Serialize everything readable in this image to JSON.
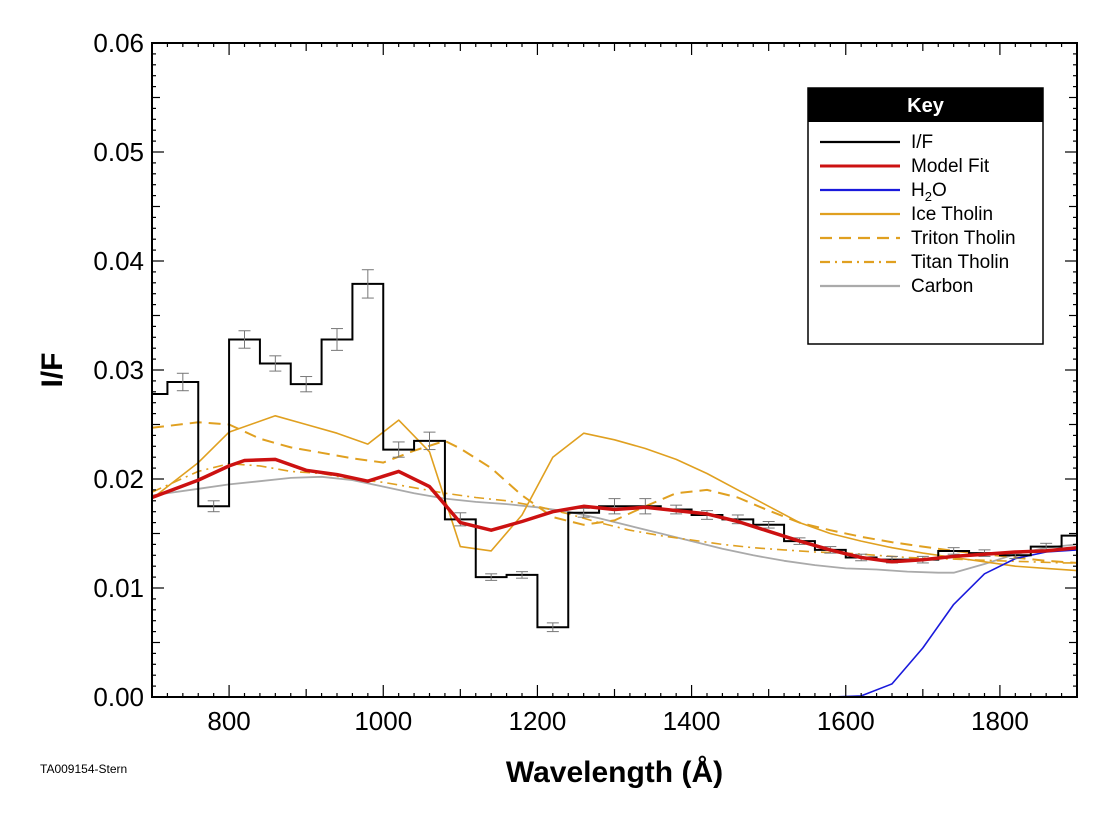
{
  "chart_data": {
    "type": "line",
    "title": "",
    "xlabel": "Wavelength (Å)",
    "ylabel": "I/F",
    "xlim": [
      700,
      1900
    ],
    "ylim": [
      0,
      0.06
    ],
    "xticks": [
      800,
      1000,
      1200,
      1400,
      1600,
      1800
    ],
    "yticks": [
      0,
      0.01,
      0.02,
      0.03,
      0.04,
      0.05,
      0.06
    ],
    "ytick_labels": [
      "0.00",
      "0.01",
      "0.02",
      "0.03",
      "0.04",
      "0.05",
      "0.06"
    ],
    "legend": {
      "title": "Key",
      "placement": "top-right"
    },
    "observed": {
      "name": "I/F",
      "color": "#000000",
      "bins": [
        {
          "x0": 700,
          "x1": 720,
          "y": 0.0278,
          "err": 0
        },
        {
          "x0": 720,
          "x1": 760,
          "y": 0.0289,
          "err": 0.0008
        },
        {
          "x0": 760,
          "x1": 800,
          "y": 0.0175,
          "err": 0.0005
        },
        {
          "x0": 800,
          "x1": 840,
          "y": 0.0328,
          "err": 0.0008
        },
        {
          "x0": 840,
          "x1": 880,
          "y": 0.0306,
          "err": 0.0007
        },
        {
          "x0": 880,
          "x1": 920,
          "y": 0.0287,
          "err": 0.0007
        },
        {
          "x0": 920,
          "x1": 960,
          "y": 0.0328,
          "err": 0.001
        },
        {
          "x0": 960,
          "x1": 1000,
          "y": 0.0379,
          "err": 0.0013
        },
        {
          "x0": 1000,
          "x1": 1040,
          "y": 0.0227,
          "err": 0.0007
        },
        {
          "x0": 1040,
          "x1": 1080,
          "y": 0.0235,
          "err": 0.0008
        },
        {
          "x0": 1080,
          "x1": 1120,
          "y": 0.0163,
          "err": 0.0006
        },
        {
          "x0": 1120,
          "x1": 1160,
          "y": 0.011,
          "err": 0.0003
        },
        {
          "x0": 1160,
          "x1": 1200,
          "y": 0.0112,
          "err": 0.0003
        },
        {
          "x0": 1200,
          "x1": 1240,
          "y": 0.0064,
          "err": 0.0004
        },
        {
          "x0": 1240,
          "x1": 1280,
          "y": 0.0169,
          "err": 0.0004
        },
        {
          "x0": 1280,
          "x1": 1320,
          "y": 0.0175,
          "err": 0.0007
        },
        {
          "x0": 1320,
          "x1": 1360,
          "y": 0.0175,
          "err": 0.0007
        },
        {
          "x0": 1360,
          "x1": 1400,
          "y": 0.0172,
          "err": 0.0004
        },
        {
          "x0": 1400,
          "x1": 1440,
          "y": 0.0167,
          "err": 0.0004
        },
        {
          "x0": 1440,
          "x1": 1480,
          "y": 0.0163,
          "err": 0.0004
        },
        {
          "x0": 1480,
          "x1": 1520,
          "y": 0.0158,
          "err": 0.0003
        },
        {
          "x0": 1520,
          "x1": 1560,
          "y": 0.0143,
          "err": 0.0003
        },
        {
          "x0": 1560,
          "x1": 1600,
          "y": 0.0135,
          "err": 0.0003
        },
        {
          "x0": 1600,
          "x1": 1640,
          "y": 0.0128,
          "err": 0.0003
        },
        {
          "x0": 1640,
          "x1": 1680,
          "y": 0.0126,
          "err": 0.0003
        },
        {
          "x0": 1680,
          "x1": 1720,
          "y": 0.0126,
          "err": 0.0003
        },
        {
          "x0": 1720,
          "x1": 1760,
          "y": 0.0134,
          "err": 0.0003
        },
        {
          "x0": 1760,
          "x1": 1800,
          "y": 0.0132,
          "err": 0.0003
        },
        {
          "x0": 1800,
          "x1": 1840,
          "y": 0.013,
          "err": 0.0003
        },
        {
          "x0": 1840,
          "x1": 1880,
          "y": 0.0138,
          "err": 0.0003
        },
        {
          "x0": 1880,
          "x1": 1900,
          "y": 0.0148,
          "err": 0
        }
      ]
    },
    "series": [
      {
        "name": "Model Fit",
        "color": "#cc1111",
        "dash": "solid",
        "width": 3.5,
        "x": [
          700,
          760,
          800,
          820,
          860,
          900,
          940,
          980,
          1020,
          1060,
          1100,
          1140,
          1180,
          1220,
          1260,
          1300,
          1340,
          1380,
          1420,
          1460,
          1500,
          1540,
          1580,
          1620,
          1660,
          1700,
          1740,
          1780,
          1820,
          1860,
          1900
        ],
        "y": [
          0.0183,
          0.0199,
          0.0212,
          0.0217,
          0.0218,
          0.0208,
          0.0204,
          0.0198,
          0.0207,
          0.0193,
          0.016,
          0.0153,
          0.0161,
          0.017,
          0.0175,
          0.0172,
          0.0174,
          0.0171,
          0.0168,
          0.0161,
          0.0152,
          0.0143,
          0.0135,
          0.0128,
          0.0124,
          0.0126,
          0.0129,
          0.0131,
          0.0133,
          0.0134,
          0.0137
        ]
      },
      {
        "name": "H₂O",
        "legend_main": "H",
        "legend_sub": "2",
        "legend_tail": "O",
        "color": "#1a1adc",
        "dash": "solid",
        "width": 1.6,
        "x": [
          700,
          800,
          900,
          1000,
          1100,
          1200,
          1300,
          1400,
          1500,
          1580,
          1620,
          1660,
          1700,
          1740,
          1780,
          1820,
          1860,
          1900
        ],
        "y": [
          0.0,
          0.0,
          0.0,
          0.0,
          0.0,
          0.0,
          0.0,
          0.0,
          0.0,
          0.0,
          0.0001,
          0.0012,
          0.0045,
          0.0085,
          0.0113,
          0.0127,
          0.0133,
          0.0135
        ]
      },
      {
        "name": "Ice Tholin",
        "color": "#e0a020",
        "dash": "solid",
        "width": 1.6,
        "x": [
          700,
          760,
          800,
          860,
          900,
          940,
          980,
          1020,
          1060,
          1100,
          1140,
          1180,
          1220,
          1260,
          1300,
          1340,
          1380,
          1420,
          1460,
          1500,
          1540,
          1580,
          1620,
          1660,
          1700,
          1740,
          1780,
          1820,
          1860,
          1900
        ],
        "y": [
          0.0182,
          0.0215,
          0.0243,
          0.0258,
          0.025,
          0.0242,
          0.0232,
          0.0254,
          0.0225,
          0.0138,
          0.0134,
          0.0167,
          0.022,
          0.0242,
          0.0236,
          0.0228,
          0.0218,
          0.0205,
          0.019,
          0.0175,
          0.016,
          0.015,
          0.0143,
          0.0137,
          0.0132,
          0.0128,
          0.0124,
          0.012,
          0.0118,
          0.0116
        ]
      },
      {
        "name": "Triton Tholin",
        "color": "#e0a020",
        "dash": "dash",
        "width": 2.0,
        "x": [
          700,
          760,
          800,
          840,
          880,
          920,
          960,
          1000,
          1040,
          1080,
          1100,
          1140,
          1180,
          1220,
          1260,
          1300,
          1340,
          1380,
          1420,
          1460,
          1500,
          1540,
          1580,
          1620,
          1660,
          1700,
          1740,
          1780,
          1820,
          1860,
          1900
        ],
        "y": [
          0.0247,
          0.0252,
          0.025,
          0.0237,
          0.0229,
          0.0224,
          0.0219,
          0.0215,
          0.0226,
          0.0235,
          0.0228,
          0.021,
          0.0185,
          0.0165,
          0.0158,
          0.0162,
          0.0175,
          0.0187,
          0.019,
          0.0183,
          0.0171,
          0.016,
          0.0153,
          0.0147,
          0.0142,
          0.0138,
          0.0134,
          0.0131,
          0.0128,
          0.0125,
          0.0123
        ]
      },
      {
        "name": "Titan Tholin",
        "color": "#e0a020",
        "dash": "dashdot",
        "width": 1.6,
        "x": [
          700,
          760,
          800,
          840,
          880,
          920,
          960,
          1000,
          1040,
          1080,
          1120,
          1160,
          1200,
          1240,
          1280,
          1320,
          1360,
          1400,
          1440,
          1480,
          1520,
          1560,
          1600,
          1640,
          1680,
          1720,
          1760,
          1800,
          1840,
          1880,
          1900
        ],
        "y": [
          0.0188,
          0.0207,
          0.0214,
          0.0212,
          0.0207,
          0.0205,
          0.02,
          0.0197,
          0.0192,
          0.0187,
          0.0183,
          0.018,
          0.0175,
          0.0168,
          0.016,
          0.0153,
          0.0148,
          0.0144,
          0.014,
          0.0137,
          0.0135,
          0.0133,
          0.0132,
          0.013,
          0.0128,
          0.0127,
          0.0126,
          0.0125,
          0.0124,
          0.0123,
          0.0123
        ]
      },
      {
        "name": "Carbon",
        "color": "#aaaaaa",
        "dash": "solid",
        "width": 1.8,
        "x": [
          700,
          760,
          800,
          840,
          880,
          920,
          960,
          1000,
          1040,
          1080,
          1120,
          1160,
          1200,
          1240,
          1280,
          1320,
          1360,
          1400,
          1440,
          1480,
          1520,
          1560,
          1600,
          1640,
          1680,
          1720,
          1740,
          1780,
          1820,
          1860,
          1900
        ],
        "y": [
          0.0185,
          0.0191,
          0.0195,
          0.0198,
          0.0201,
          0.0202,
          0.0199,
          0.0193,
          0.0187,
          0.0182,
          0.0179,
          0.0177,
          0.0174,
          0.017,
          0.0164,
          0.0157,
          0.015,
          0.0143,
          0.0136,
          0.013,
          0.0125,
          0.0121,
          0.0118,
          0.0117,
          0.0115,
          0.0114,
          0.0114,
          0.0122,
          0.0131,
          0.0137,
          0.014
        ]
      }
    ]
  },
  "credit": "TA009154-Stern"
}
